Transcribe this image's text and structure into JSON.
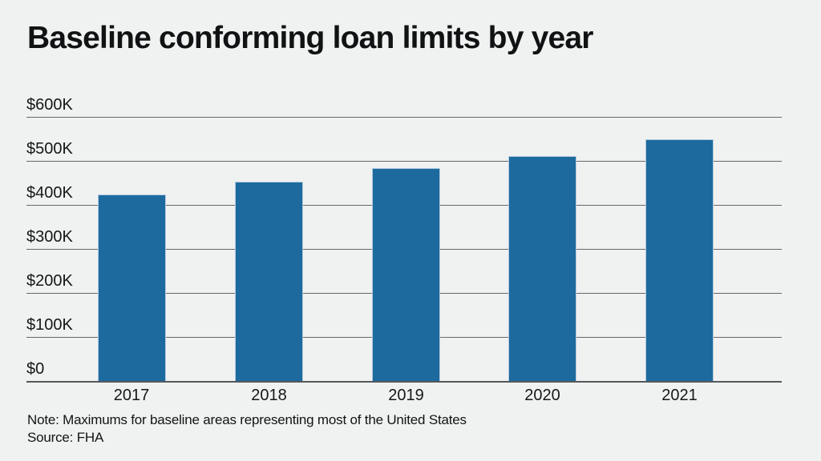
{
  "title": "Baseline conforming loan limits by year",
  "note": "Note: Maximums for baseline areas representing most of the United States",
  "source": "Source: FHA",
  "colors": {
    "background": "#f0f1f1",
    "bar_fill": "#1d6a9f",
    "bar_stroke": "#b3cbdd",
    "gridline": "#64686a",
    "axis_line": "#54585a",
    "text": "#131313"
  },
  "chart_data": {
    "type": "bar",
    "title": "Baseline conforming loan limits by year",
    "categories": [
      "2017",
      "2018",
      "2019",
      "2020",
      "2021"
    ],
    "values": [
      424100,
      453100,
      484350,
      510400,
      548250
    ],
    "xlabel": "",
    "ylabel": "",
    "ylim": [
      0,
      600000
    ],
    "yticks": [
      {
        "value": 0,
        "label": "$0"
      },
      {
        "value": 100000,
        "label": "$100K"
      },
      {
        "value": 200000,
        "label": "$200K"
      },
      {
        "value": 300000,
        "label": "$300K"
      },
      {
        "value": 400000,
        "label": "$400K"
      },
      {
        "value": 500000,
        "label": "$500K"
      },
      {
        "value": 600000,
        "label": "$600K"
      }
    ],
    "grid": true,
    "legend": false,
    "note": "Note: Maximums for baseline areas representing most of the United States",
    "source": "Source: FHA"
  }
}
